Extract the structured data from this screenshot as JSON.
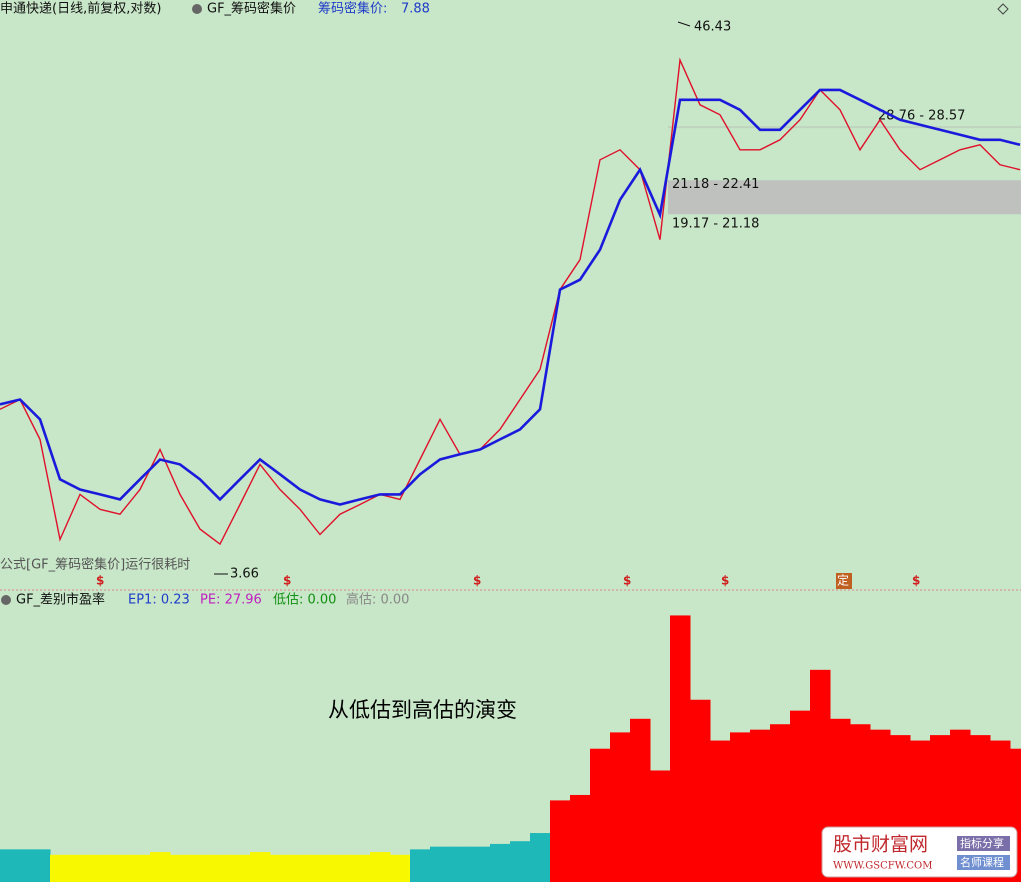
{
  "header": {
    "title": "申通快递(日线,前复权,对数)",
    "indicator": "GF_筹码密集价",
    "indicator_value_label": "筹码密集价:",
    "indicator_value": 7.88
  },
  "note": "公式[GF_筹码密集价]运行很耗时",
  "markers": {
    "dollar": "$",
    "fixed": "定"
  },
  "lower_header": {
    "indicator": "GF_差别市盈率",
    "ep1": "EP1: 0.23",
    "pe": "PE: 27.96",
    "low": "低估: 0.00",
    "high": "高估: 0.00"
  },
  "overlay_text": "从低估到高估的演变",
  "logo": {
    "name": "股市财富网",
    "url": "WWW.GSCFW.COM",
    "tag1": "指标分享",
    "tag2": "名师课程"
  },
  "chart_data": [
    {
      "type": "line",
      "log_scale": true,
      "ylim": [
        3.4,
        47.3
      ],
      "series": [
        {
          "name": "price",
          "color": "#e0102a",
          "values": [
            7.81,
            8.17,
            6.8,
            4.29,
            5.28,
            4.93,
            4.82,
            5.4,
            6.49,
            5.28,
            4.5,
            4.2,
            5.04,
            6.06,
            5.4,
            4.93,
            4.39,
            4.82,
            5.04,
            5.28,
            5.16,
            6.2,
            7.46,
            6.35,
            6.49,
            7.12,
            8.17,
            9.38,
            13.55,
            15.55,
            24.63,
            25.79,
            23.53,
            17.05,
            38.98,
            31.72,
            30.3,
            25.79,
            25.79,
            27.0,
            29.61,
            33.98,
            31.0,
            25.79,
            29.61,
            25.79,
            23.53,
            24.63,
            25.79,
            26.39,
            24.07,
            23.53
          ]
        },
        {
          "name": "chip",
          "color": "#1a1adc",
          "values": [
            7.99,
            8.17,
            7.46,
            5.66,
            5.4,
            5.28,
            5.16,
            5.66,
            6.2,
            6.06,
            5.66,
            5.16,
            5.66,
            6.2,
            5.79,
            5.4,
            5.16,
            5.04,
            5.16,
            5.28,
            5.28,
            5.79,
            6.2,
            6.35,
            6.49,
            6.8,
            7.12,
            7.81,
            13.55,
            14.18,
            16.28,
            20.49,
            23.53,
            19.12,
            32.46,
            32.46,
            32.46,
            31.0,
            28.27,
            28.27,
            31.0,
            33.98,
            33.98,
            32.46,
            31.0,
            29.61,
            28.93,
            28.27,
            27.63,
            27.0,
            27.0,
            26.39
          ]
        }
      ],
      "high": 46.43,
      "low": 3.66,
      "bands": [
        {
          "label": "28.76 - 28.57",
          "low": 28.57,
          "high": 28.76
        },
        {
          "label": "21.18 - 22.41",
          "low": 21.18,
          "high": 22.41
        },
        {
          "label": "19.17 - 21.18",
          "low": 19.17,
          "high": 21.18
        }
      ]
    },
    {
      "type": "bar",
      "ylim": [
        0,
        100
      ],
      "values": [
        12,
        12,
        12,
        10,
        10,
        10,
        10,
        10,
        11,
        10,
        10,
        10,
        10,
        11,
        10,
        10,
        10,
        10,
        10,
        11,
        10,
        12,
        13,
        13,
        13,
        14,
        15,
        18,
        30,
        32,
        49,
        55,
        60,
        41,
        98,
        67,
        52,
        55,
        56,
        58,
        63,
        78,
        60,
        58,
        56,
        54,
        52,
        54,
        56,
        54,
        52,
        49
      ],
      "colors": [
        "#1fb8b8",
        "#1fb8b8",
        "#1fb8b8",
        "#f8f800",
        "#f8f800",
        "#f8f800",
        "#f8f800",
        "#f8f800",
        "#f8f800",
        "#f8f800",
        "#f8f800",
        "#f8f800",
        "#f8f800",
        "#f8f800",
        "#f8f800",
        "#f8f800",
        "#f8f800",
        "#f8f800",
        "#f8f800",
        "#f8f800",
        "#f8f800",
        "#1fb8b8",
        "#1fb8b8",
        "#1fb8b8",
        "#1fb8b8",
        "#1fb8b8",
        "#1fb8b8",
        "#1fb8b8",
        "#ff0000",
        "#ff0000",
        "#ff0000",
        "#ff0000",
        "#ff0000",
        "#ff0000",
        "#ff0000",
        "#ff0000",
        "#ff0000",
        "#ff0000",
        "#ff0000",
        "#ff0000",
        "#ff0000",
        "#ff0000",
        "#ff0000",
        "#ff0000",
        "#ff0000",
        "#ff0000",
        "#ff0000",
        "#ff0000",
        "#ff0000",
        "#ff0000",
        "#ff0000",
        "#ff0000"
      ]
    }
  ]
}
